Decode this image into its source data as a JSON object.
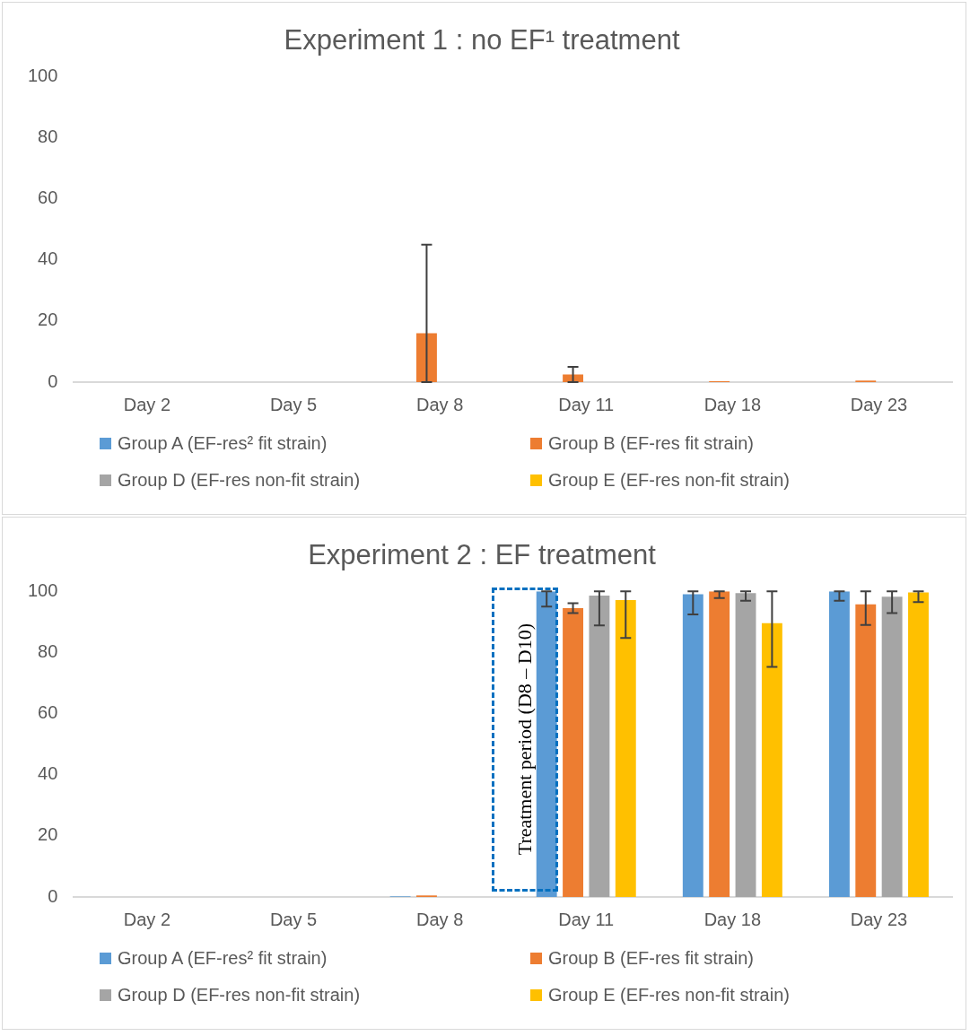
{
  "chart_data": [
    {
      "type": "bar",
      "title": "Experiment 1 : no EF¹ treatment",
      "categories": [
        "Day 2",
        "Day 5",
        "Day 8",
        "Day 11",
        "Day 18",
        "Day 23"
      ],
      "series": [
        {
          "name": "Group A (EF-res² fit strain)",
          "color": "#5b9bd5",
          "values": [
            0,
            0,
            0,
            0,
            0,
            0
          ]
        },
        {
          "name": "Group B (EF-res fit strain)",
          "color": "#ed7d31",
          "values": [
            0,
            0,
            16,
            2.5,
            0.3,
            0.5
          ],
          "errors": [
            null,
            null,
            [
              0,
              45
            ],
            [
              0,
              5
            ],
            null,
            null
          ]
        },
        {
          "name": "Group D (EF-res non-fit strain)",
          "color": "#a5a5a5",
          "values": [
            0,
            0,
            0,
            0,
            0,
            0
          ]
        },
        {
          "name": "Group E (EF-res non-fit strain)",
          "color": "#ffc000",
          "values": [
            0,
            0,
            0,
            0,
            0,
            0
          ]
        }
      ],
      "ylim": [
        0,
        100
      ],
      "yticks": [
        0,
        20,
        40,
        60,
        80,
        100
      ],
      "grid": false,
      "legend": "bottom"
    },
    {
      "type": "bar",
      "title": "Experiment 2 : EF treatment",
      "categories": [
        "Day 2",
        "Day 5",
        "Day 8",
        "Day 11",
        "Day 18",
        "Day 23"
      ],
      "series": [
        {
          "name": "Group A (EF-res² fit strain)",
          "color": "#5b9bd5",
          "values": [
            0,
            0,
            0.2,
            100,
            99,
            100
          ],
          "errors": [
            null,
            null,
            null,
            [
              95,
              100
            ],
            [
              92.4,
              100
            ],
            [
              96.9,
              100
            ]
          ]
        },
        {
          "name": "Group B (EF-res fit strain)",
          "color": "#ed7d31",
          "values": [
            0,
            0,
            0.5,
            94.5,
            100,
            95.7
          ],
          "errors": [
            null,
            null,
            null,
            [
              92.9,
              96.1
            ],
            [
              97.8,
              100
            ],
            [
              89,
              100
            ]
          ]
        },
        {
          "name": "Group D (EF-res non-fit strain)",
          "color": "#a5a5a5",
          "values": [
            0,
            0,
            0,
            98.6,
            99.4,
            98.2
          ],
          "errors": [
            null,
            null,
            null,
            [
              88.8,
              100
            ],
            [
              96.9,
              100
            ],
            [
              92.9,
              100
            ]
          ]
        },
        {
          "name": "Group E (EF-res non-fit strain)",
          "color": "#ffc000",
          "values": [
            0,
            0,
            0,
            97.1,
            89.6,
            99.6
          ],
          "errors": [
            null,
            null,
            null,
            [
              84.7,
              100
            ],
            [
              75.3,
              100
            ],
            [
              96.5,
              100
            ]
          ]
        }
      ],
      "ylim": [
        0,
        100
      ],
      "yticks": [
        0,
        20,
        40,
        60,
        80,
        100
      ],
      "grid": false,
      "legend": "bottom",
      "annotations": [
        "Treatment period (D8 – D10)"
      ]
    }
  ]
}
